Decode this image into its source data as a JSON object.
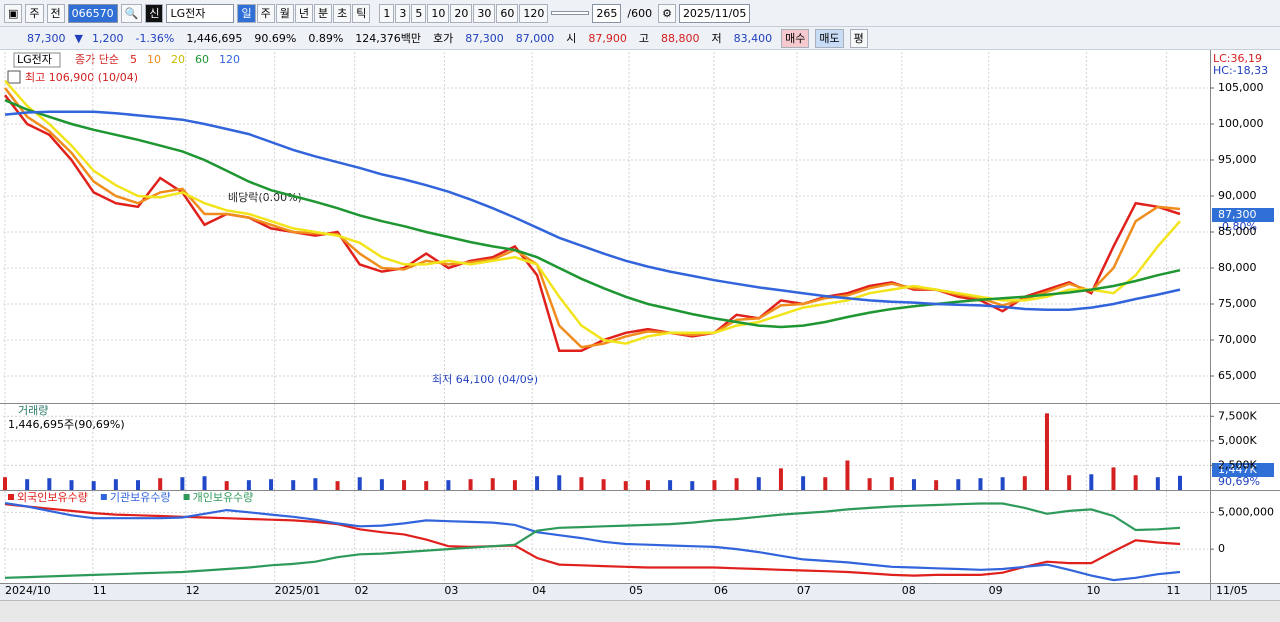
{
  "toolbar": {
    "stock_select": "주",
    "prefix": "전",
    "code": "066570",
    "market_tag": "신",
    "name": "LG전자",
    "periods": [
      "일",
      "주",
      "월",
      "년",
      "분",
      "초",
      "틱"
    ],
    "intervals": [
      "1",
      "3",
      "5",
      "10",
      "20",
      "30",
      "60",
      "120"
    ],
    "count": "265",
    "max": "/600",
    "date": "2025/11/05"
  },
  "quote": {
    "price": "87,300",
    "arrow": "▼",
    "change": "1,200",
    "change_pct": "-1.36%",
    "volume": "1,446,695",
    "vol_ratio": "90.69%",
    "turnover": "0.89%",
    "amount": "124,376백만",
    "bid_label": "호가",
    "ask": "87,300",
    "bid": "87,000",
    "open_label": "시",
    "open": "87,900",
    "high_label": "고",
    "high": "88,800",
    "low_label": "저",
    "low": "83,400",
    "buy": "매수",
    "sell": "매도",
    "avg": "평"
  },
  "chart_data": [
    {
      "type": "line",
      "stock_label": "LG전자",
      "legend_prefix": "종가 단순",
      "high_note": "최고 106,900 (10/04)",
      "dividend_note": "배당락(0.00%)",
      "low_note": "최저 64,100 (04/09)",
      "lc": "LC:36,19",
      "hc": "HC:-18,33",
      "last_price": "87,300",
      "last_change": "-0.80%",
      "end_label": "11/05",
      "grid": true,
      "xlim": [
        0,
        53
      ],
      "xticks": [
        {
          "value": 0,
          "label": "2024/10"
        },
        {
          "value": 3.96,
          "label": "11"
        },
        {
          "value": 8.15,
          "label": "12"
        },
        {
          "value": 12.16,
          "label": "2025/01"
        },
        {
          "value": 15.77,
          "label": "02"
        },
        {
          "value": 19.82,
          "label": "03"
        },
        {
          "value": 23.78,
          "label": "04"
        },
        {
          "value": 28.15,
          "label": "05"
        },
        {
          "value": 31.98,
          "label": "06"
        },
        {
          "value": 35.72,
          "label": "07"
        },
        {
          "value": 40.45,
          "label": "08"
        },
        {
          "value": 44.37,
          "label": "09"
        },
        {
          "value": 48.78,
          "label": "10"
        },
        {
          "value": 52.39,
          "label": "11"
        }
      ],
      "ylim": [
        61250,
        110000
      ],
      "yticks": [
        {
          "value": 65000,
          "label": "65,000"
        },
        {
          "value": 70000,
          "label": "70,000"
        },
        {
          "value": 75000,
          "label": "75,000"
        },
        {
          "value": 80000,
          "label": "80,000"
        },
        {
          "value": 85000,
          "label": "85,000"
        },
        {
          "value": 90000,
          "label": "90,000"
        },
        {
          "value": 95000,
          "label": "95,000"
        },
        {
          "value": 100000,
          "label": "100,000"
        },
        {
          "value": 105000,
          "label": "105,000"
        }
      ],
      "series": [
        {
          "name": "5",
          "color": "#e0201c",
          "values": [
            104000,
            100000,
            98500,
            95000,
            90500,
            89000,
            88500,
            92500,
            90500,
            86000,
            87500,
            87000,
            85500,
            85000,
            84500,
            85000,
            80500,
            79500,
            80000,
            82000,
            80000,
            81000,
            81500,
            83000,
            79000,
            68500,
            68500,
            70000,
            71000,
            71500,
            71000,
            70500,
            71000,
            73500,
            73000,
            75500,
            75000,
            76000,
            76500,
            77500,
            78000,
            77000,
            77000,
            76000,
            75500,
            74000,
            76000,
            77000,
            78000,
            76500,
            83000,
            89000,
            88500,
            87500
          ]
        },
        {
          "name": "10",
          "color": "#f08c1c",
          "values": [
            105000,
            101000,
            99000,
            96000,
            92000,
            90000,
            89000,
            90500,
            91000,
            87500,
            87500,
            87000,
            86000,
            85000,
            84800,
            84700,
            82000,
            80000,
            79800,
            81000,
            80500,
            80800,
            81200,
            82500,
            80500,
            72000,
            69000,
            69500,
            70500,
            71200,
            71000,
            70700,
            71000,
            72800,
            73000,
            74800,
            75000,
            75800,
            76200,
            77200,
            77800,
            77200,
            77000,
            76300,
            75800,
            74800,
            75700,
            76700,
            77800,
            76800,
            80000,
            86500,
            88500,
            88200
          ]
        },
        {
          "name": "20",
          "color": "#f2e41a",
          "values": [
            106000,
            102500,
            100000,
            97000,
            93500,
            91500,
            90000,
            89800,
            90500,
            89000,
            88000,
            87500,
            86500,
            85500,
            85000,
            84500,
            83500,
            81500,
            80500,
            80500,
            81000,
            80500,
            81000,
            81500,
            80500,
            76000,
            72000,
            70000,
            69500,
            70500,
            71000,
            71000,
            71000,
            72000,
            72500,
            73500,
            74500,
            75000,
            75500,
            76500,
            77000,
            77500,
            77000,
            76500,
            76000,
            75500,
            75500,
            76000,
            77000,
            77000,
            76500,
            79000,
            83000,
            86500
          ]
        },
        {
          "name": "60",
          "color": "#1e9632",
          "values": [
            103300,
            102000,
            101000,
            100000,
            99200,
            98500,
            97800,
            97000,
            96200,
            95000,
            93500,
            92000,
            90800,
            90000,
            89200,
            88300,
            87300,
            86500,
            85800,
            85000,
            84300,
            83600,
            83000,
            82500,
            81500,
            80000,
            78500,
            77200,
            76000,
            75000,
            74300,
            73600,
            73000,
            72500,
            72000,
            71800,
            72000,
            72500,
            73200,
            73800,
            74300,
            74700,
            75000,
            75300,
            75600,
            75800,
            76000,
            76300,
            76600,
            77000,
            77500,
            78200,
            79000,
            79700
          ]
        },
        {
          "name": "120",
          "color": "#3264dc",
          "values": [
            101300,
            101600,
            101700,
            101700,
            101700,
            101500,
            101200,
            100900,
            100600,
            100000,
            99300,
            98600,
            97500,
            96400,
            95500,
            94700,
            93900,
            93000,
            92300,
            91500,
            90600,
            89500,
            88300,
            87000,
            85600,
            84200,
            83100,
            82000,
            81000,
            80200,
            79500,
            78900,
            78300,
            77800,
            77300,
            76900,
            76500,
            76100,
            75800,
            75500,
            75300,
            75200,
            75000,
            74900,
            74800,
            74600,
            74300,
            74200,
            74200,
            74500,
            75000,
            75700,
            76300,
            77000
          ]
        }
      ]
    },
    {
      "type": "bar",
      "title": "거래량",
      "subtitle": "1,446,695주(90,69%)",
      "last_label": "1,447K",
      "ratio_label": "90,69%",
      "up_color": "#d42020",
      "down_color": "#2048c8",
      "xlim": [
        0,
        53
      ],
      "ylim": [
        0,
        8750
      ],
      "yticks": [
        {
          "value": 2500,
          "label": "2,500K"
        },
        {
          "value": 5000,
          "label": "5,000K"
        },
        {
          "value": 7500,
          "label": "7,500K"
        }
      ],
      "values": [
        1300,
        1100,
        1200,
        1000,
        900,
        1100,
        1000,
        1200,
        1300,
        1400,
        900,
        1000,
        1100,
        1000,
        1200,
        900,
        1300,
        1100,
        1000,
        900,
        1000,
        1100,
        1200,
        1000,
        1400,
        1500,
        1300,
        1100,
        900,
        1000,
        1000,
        900,
        1000,
        1200,
        1300,
        2200,
        1400,
        1300,
        3000,
        1200,
        1300,
        1100,
        1000,
        1100,
        1200,
        1300,
        1400,
        7800,
        1500,
        1600,
        2300,
        1500,
        1300,
        1447
      ]
    },
    {
      "type": "line",
      "xlim": [
        0,
        53
      ],
      "ylim": [
        -4600000,
        7900000
      ],
      "yticks": [
        0,
        {
          "value": 5000000,
          "label": "5,000,000"
        }
      ],
      "series": [
        {
          "name": "외국인보유수량",
          "color": "#e0201c",
          "values": [
            6100000,
            5800000,
            5500000,
            5200000,
            4900000,
            4700000,
            4600000,
            4500000,
            4400000,
            4300000,
            4200000,
            4100000,
            4000000,
            3900000,
            3700000,
            3400000,
            2700000,
            2300000,
            2000000,
            1300000,
            400000,
            300000,
            400000,
            500000,
            -1200000,
            -2100000,
            -2200000,
            -2300000,
            -2400000,
            -2500000,
            -2500000,
            -2500000,
            -2500000,
            -2600000,
            -2700000,
            -2800000,
            -2900000,
            -3000000,
            -3100000,
            -3300000,
            -3500000,
            -3600000,
            -3500000,
            -3500000,
            -3500000,
            -3200000,
            -2400000,
            -1700000,
            -1900000,
            -1900000,
            -300000,
            1200000,
            900000,
            700000
          ]
        },
        {
          "name": "기관보유수량",
          "color": "#3264dc",
          "values": [
            6250000,
            5800000,
            5200000,
            4600000,
            4200000,
            4200000,
            4200000,
            4200000,
            4300000,
            4800000,
            5300000,
            5000000,
            4700000,
            4400000,
            4000000,
            3500000,
            3100000,
            3200000,
            3500000,
            3900000,
            3800000,
            3700000,
            3600000,
            3300000,
            2300000,
            1900000,
            1500000,
            1000000,
            700000,
            600000,
            500000,
            400000,
            300000,
            0,
            -400000,
            -900000,
            -1400000,
            -1600000,
            -1800000,
            -2100000,
            -2400000,
            -2500000,
            -2600000,
            -2700000,
            -2800000,
            -2700000,
            -2400000,
            -2100000,
            -2800000,
            -3600000,
            -4200000,
            -3900000,
            -3400000,
            -3100000
          ]
        },
        {
          "name": "개인보유수량",
          "color": "#2e9a5a",
          "values": [
            -3900000,
            -3800000,
            -3700000,
            -3600000,
            -3500000,
            -3400000,
            -3300000,
            -3200000,
            -3100000,
            -2900000,
            -2700000,
            -2500000,
            -2200000,
            -2000000,
            -1700000,
            -1100000,
            -700000,
            -600000,
            -400000,
            -200000,
            0,
            200000,
            400000,
            600000,
            2500000,
            2900000,
            3000000,
            3100000,
            3200000,
            3300000,
            3400000,
            3600000,
            3900000,
            4100000,
            4400000,
            4700000,
            4900000,
            5100000,
            5400000,
            5600000,
            5800000,
            5900000,
            6000000,
            6100000,
            6200000,
            6200000,
            5600000,
            4800000,
            5200000,
            5400000,
            4500000,
            2600000,
            2700000,
            2900000
          ]
        }
      ]
    }
  ]
}
